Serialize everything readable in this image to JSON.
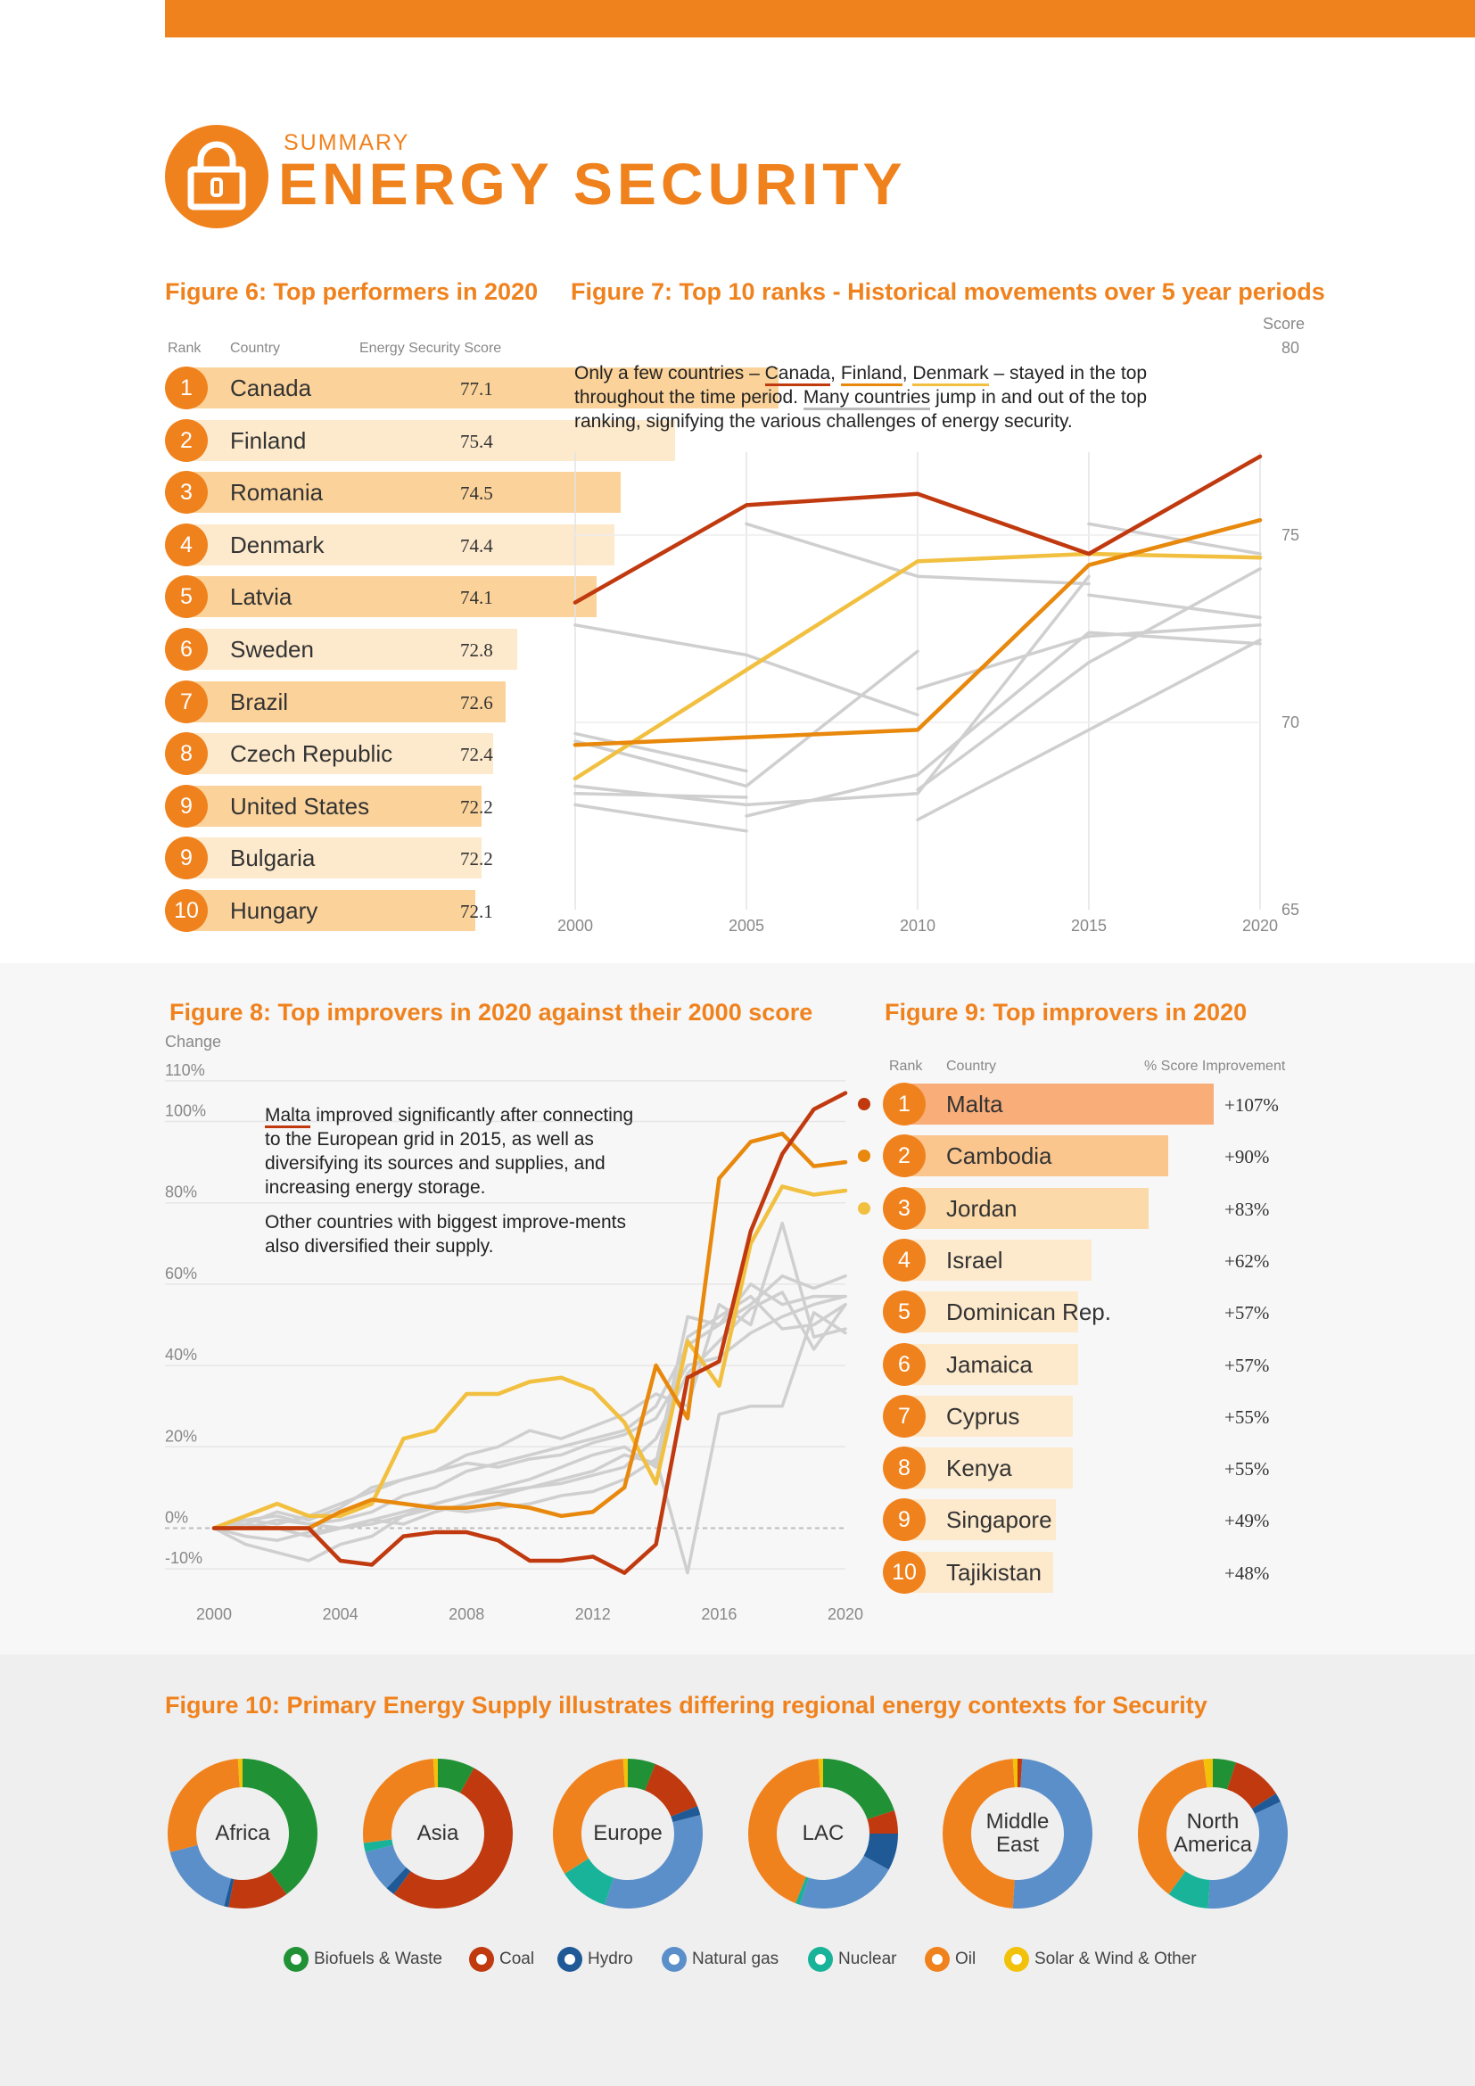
{
  "header": {
    "summary": "SUMMARY",
    "title": "ENERGY SECURITY",
    "accent_color": "#f0821e",
    "icon": "lock-icon"
  },
  "fig6": {
    "title": "Figure 6:  Top performers in 2020",
    "col_rank": "Rank",
    "col_country": "Country",
    "col_score": "Energy Security Score"
  },
  "fig7": {
    "title": "Figure 7:  Top 10 ranks - Historical movements over 5 year periods",
    "axis_label": "Score",
    "note_1": "Only a few countries – ",
    "note_canada": "Canada",
    "note_comma1": ", ",
    "note_finland": "Finland",
    "note_comma2": ", ",
    "note_denmark": "Denmark",
    "note_2": " – stayed in the top throughout the time period. ",
    "note_many": "Many countries",
    "note_3": " jump in and out of the top ranking, signifying the various challenges of energy security."
  },
  "fig8": {
    "title": "Figure 8:  Top improvers in 2020 against their 2000 score",
    "axis_label": "Change",
    "note_malta": "Malta",
    "note_1": " improved significantly after connecting to the European grid in 2015, as well as diversifying its sources and supplies, and increasing energy storage.",
    "note_2": "Other countries with biggest improve-ments also diversified their supply."
  },
  "fig9": {
    "title": "Figure 9:  Top improvers in 2020",
    "col_rank": "Rank",
    "col_country": "Country",
    "col_improvement": "% Score Improvement"
  },
  "fig10": {
    "title": "Figure 10:  Primary Energy Supply illustrates differing regional energy contexts for Security"
  },
  "chart_data": [
    {
      "type": "table",
      "title": "Figure 6:  Top performers in 2020",
      "rows": [
        {
          "rank": "1",
          "country": "Canada",
          "score": "77.1",
          "value": 77.1
        },
        {
          "rank": "2",
          "country": "Finland",
          "score": "75.4",
          "value": 75.4
        },
        {
          "rank": "3",
          "country": "Romania",
          "score": "74.5",
          "value": 74.5
        },
        {
          "rank": "4",
          "country": "Denmark",
          "score": "74.4",
          "value": 74.4
        },
        {
          "rank": "5",
          "country": "Latvia",
          "score": "74.1",
          "value": 74.1
        },
        {
          "rank": "6",
          "country": "Sweden",
          "score": "72.8",
          "value": 72.8
        },
        {
          "rank": "7",
          "country": "Brazil",
          "score": "72.6",
          "value": 72.6
        },
        {
          "rank": "8",
          "country": "Czech Republic",
          "score": "72.4",
          "value": 72.4
        },
        {
          "rank": "9",
          "country": "United States",
          "score": "72.2",
          "value": 72.2
        },
        {
          "rank": "9",
          "country": "Bulgaria",
          "score": "72.2",
          "value": 72.2
        },
        {
          "rank": "10",
          "country": "Hungary",
          "score": "72.1",
          "value": 72.1
        }
      ],
      "bar_colors": [
        "#fbd29a",
        "#fde9cc"
      ]
    },
    {
      "type": "line",
      "title": "Figure 7:  Top 10 ranks - Historical movements over 5 year periods",
      "ylabel": "Score",
      "x": [
        2000,
        2005,
        2010,
        2015,
        2020
      ],
      "x_ticks": [
        "2000",
        "2005",
        "2010",
        "2015",
        "2020"
      ],
      "y_ticks": [
        "80",
        "75",
        "70",
        "65"
      ],
      "y_tick_values": [
        80,
        75,
        70,
        65
      ],
      "ylim": [
        65,
        80
      ],
      "highlight_series": [
        {
          "name": "Canada",
          "color": "#c0390f",
          "values": [
            73.2,
            75.8,
            76.1,
            74.5,
            77.1
          ]
        },
        {
          "name": "Finland",
          "color": "#e8880c",
          "values": [
            69.4,
            69.6,
            69.8,
            74.2,
            75.4
          ]
        },
        {
          "name": "Denmark",
          "color": "#f2c040",
          "values": [
            68.5,
            71.4,
            74.3,
            74.5,
            74.4
          ]
        }
      ],
      "other_series": [
        [
          null,
          75.3,
          73.9,
          73.7,
          null
        ],
        [
          null,
          null,
          null,
          75.3,
          74.5
        ],
        [
          72.6,
          71.8,
          70.2,
          null,
          null
        ],
        [
          69.7,
          68.7,
          null,
          null,
          null
        ],
        [
          69.5,
          68.3,
          71.9,
          null,
          null
        ],
        [
          68.3,
          67.8,
          68.1,
          73.9,
          null
        ],
        [
          68.1,
          68.0,
          null,
          null,
          null
        ],
        [
          67.8,
          67.1,
          null,
          null,
          null
        ],
        [
          null,
          null,
          67.4,
          69.8,
          72.2
        ],
        [
          null,
          67.5,
          68.6,
          72.4,
          72.1
        ],
        [
          null,
          null,
          68.2,
          71.6,
          74.1
        ],
        [
          null,
          null,
          null,
          73.4,
          72.8
        ],
        [
          null,
          null,
          70.9,
          72.3,
          72.6
        ]
      ]
    },
    {
      "type": "line",
      "title": "Figure 8:  Top improvers in 2020 against their 2000 score",
      "ylabel": "Change",
      "x": [
        2000,
        2001,
        2002,
        2003,
        2004,
        2005,
        2006,
        2007,
        2008,
        2009,
        2010,
        2011,
        2012,
        2013,
        2014,
        2015,
        2016,
        2017,
        2018,
        2019,
        2020
      ],
      "x_ticks": [
        "2000",
        "2004",
        "2008",
        "2012",
        "2016",
        "2020"
      ],
      "x_tick_values": [
        2000,
        2004,
        2008,
        2012,
        2016,
        2020
      ],
      "y_ticks": [
        "110%",
        "100%",
        "80%",
        "60%",
        "40%",
        "20%",
        "0%",
        "-10%"
      ],
      "y_tick_values": [
        110,
        100,
        80,
        60,
        40,
        20,
        0,
        -10
      ],
      "ylim": [
        -12,
        112
      ],
      "highlight_series": [
        {
          "name": "Malta",
          "color": "#c0390f",
          "values": [
            0,
            0,
            0,
            0,
            -8,
            -9,
            -2,
            -1,
            -1,
            -3,
            -8,
            -8,
            -7,
            -11,
            -4,
            37,
            41,
            73,
            92,
            103,
            107
          ]
        },
        {
          "name": "Cambodia",
          "color": "#e8880c",
          "values": [
            0,
            0,
            0,
            0,
            4,
            7,
            6,
            5,
            5,
            6,
            5,
            3,
            4,
            10,
            40,
            27,
            86,
            95,
            97,
            89,
            90
          ]
        },
        {
          "name": "Jordan",
          "color": "#f2c040",
          "values": [
            0,
            3,
            6,
            3,
            3,
            6,
            22,
            24,
            33,
            33,
            36,
            37,
            34,
            26,
            11,
            46,
            35,
            70,
            84,
            82,
            83
          ]
        }
      ],
      "other_series": [
        [
          0,
          2,
          3,
          1,
          2,
          4,
          8,
          10,
          14,
          16,
          18,
          20,
          22,
          24,
          30,
          45,
          50,
          55,
          62,
          59,
          62
        ],
        [
          0,
          -2,
          -3,
          -1,
          0,
          2,
          1,
          4,
          6,
          8,
          10,
          12,
          14,
          18,
          16,
          52,
          50,
          60,
          55,
          57,
          57
        ],
        [
          0,
          1,
          4,
          2,
          5,
          10,
          12,
          14,
          16,
          15,
          17,
          18,
          21,
          23,
          27,
          40,
          42,
          48,
          52,
          55,
          57
        ],
        [
          0,
          -4,
          -6,
          -8,
          -4,
          -2,
          3,
          6,
          8,
          10,
          12,
          15,
          18,
          20,
          15,
          47,
          52,
          57,
          49,
          50,
          55
        ],
        [
          0,
          0,
          2,
          1,
          0,
          2,
          4,
          6,
          8,
          9,
          10,
          11,
          13,
          15,
          22,
          38,
          46,
          54,
          58,
          44,
          55
        ],
        [
          0,
          2,
          1,
          3,
          6,
          9,
          12,
          14,
          18,
          20,
          24,
          22,
          25,
          28,
          33,
          30,
          55,
          50,
          75,
          47,
          49
        ],
        [
          0,
          1,
          0,
          -2,
          0,
          1,
          3,
          5,
          4,
          5,
          6,
          8,
          9,
          12,
          17,
          -11,
          28,
          30,
          30,
          53,
          48
        ]
      ],
      "zero_line": true
    },
    {
      "type": "table",
      "title": "Figure 9:  Top improvers in 2020",
      "rows": [
        {
          "rank": "1",
          "country": "Malta",
          "improvement": "+107%",
          "value": 107
        },
        {
          "rank": "2",
          "country": "Cambodia",
          "improvement": "+90%",
          "value": 90
        },
        {
          "rank": "3",
          "country": "Jordan",
          "improvement": "+83%",
          "value": 83
        },
        {
          "rank": "4",
          "country": "Israel",
          "improvement": "+62%",
          "value": 62
        },
        {
          "rank": "5",
          "country": "Dominican Rep.",
          "improvement": "+57%",
          "value": 57
        },
        {
          "rank": "6",
          "country": "Jamaica",
          "improvement": "+57%",
          "value": 57
        },
        {
          "rank": "7",
          "country": "Cyprus",
          "improvement": "+55%",
          "value": 55
        },
        {
          "rank": "8",
          "country": "Kenya",
          "improvement": "+55%",
          "value": 55
        },
        {
          "rank": "9",
          "country": "Singapore",
          "improvement": "+49%",
          "value": 49
        },
        {
          "rank": "10",
          "country": "Tajikistan",
          "improvement": "+48%",
          "value": 48
        }
      ],
      "row_colors": [
        "#f9ad78",
        "#fbc58e",
        "#fcd9a8",
        "#fde9cc",
        "#fde9cc",
        "#fde9cc",
        "#fde9cc",
        "#fde9cc",
        "#fde9cc",
        "#fde9cc"
      ],
      "marker_colors": [
        "#c0390f",
        "#e8880c",
        "#f2c040"
      ]
    },
    {
      "type": "pie",
      "title": "Figure 10:  Primary Energy Supply illustrates differing regional energy contexts for Security",
      "categories": [
        "Biofuels & Waste",
        "Coal",
        "Hydro",
        "Natural gas",
        "Nuclear",
        "Oil",
        "Solar & Wind & Other"
      ],
      "colors": [
        "#219135",
        "#c0390f",
        "#1f5a96",
        "#5b8fc9",
        "#19b39a",
        "#f0821e",
        "#f2c20a"
      ],
      "order": [
        "Biofuels & Waste",
        "Coal",
        "Hydro",
        "Natural gas",
        "Nuclear",
        "Oil",
        "Solar & Wind & Other"
      ],
      "regions": [
        {
          "name": "Africa",
          "label_lines": [
            "Africa"
          ],
          "values": [
            40,
            13,
            1,
            17,
            0,
            28,
            1
          ]
        },
        {
          "name": "Asia",
          "label_lines": [
            "Asia"
          ],
          "values": [
            8,
            52,
            2,
            9,
            2,
            26,
            1
          ]
        },
        {
          "name": "Europe",
          "label_lines": [
            "Europe"
          ],
          "values": [
            6,
            13,
            2,
            34,
            11,
            33,
            1
          ]
        },
        {
          "name": "LAC",
          "label_lines": [
            "LAC"
          ],
          "values": [
            20,
            5,
            8,
            22,
            1,
            43,
            1
          ]
        },
        {
          "name": "Middle East",
          "label_lines": [
            "Middle",
            "East"
          ],
          "values": [
            0,
            1,
            0,
            50,
            0,
            48,
            1
          ]
        },
        {
          "name": "North America",
          "label_lines": [
            "North",
            "America"
          ],
          "values": [
            5,
            11,
            2,
            33,
            9,
            38,
            2
          ]
        }
      ]
    }
  ]
}
